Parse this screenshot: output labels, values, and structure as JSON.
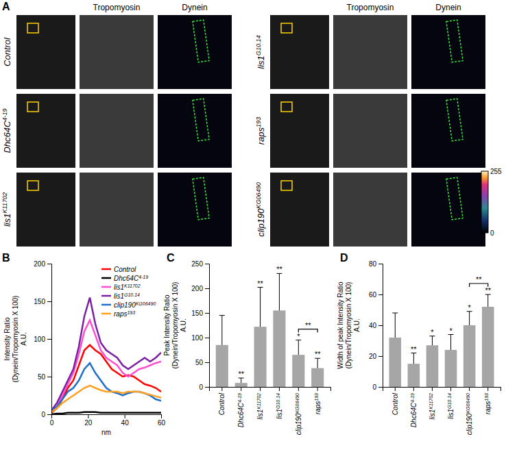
{
  "image_panel": {
    "panel_label": "A",
    "channels": [
      "Tropomyosin",
      "Dynein"
    ],
    "rows": [
      {
        "name": "Control",
        "allele": null
      },
      {
        "name": "Dhc64C",
        "allele": "4-19"
      },
      {
        "name": "lis1",
        "allele": "K11702"
      },
      {
        "name": "lis1",
        "allele": "G10.14"
      },
      {
        "name": "raps",
        "allele": "193"
      },
      {
        "name": "clip190",
        "allele": "KG06490"
      }
    ],
    "colorbar_range": [
      0,
      255
    ],
    "colorbar_ticks": [
      0,
      255
    ]
  },
  "chart_data": [
    {
      "type": "line",
      "panel_label": "B",
      "x": [
        0,
        3,
        6,
        9,
        12,
        15,
        18,
        21,
        24,
        27,
        30,
        33,
        36,
        39,
        42,
        45,
        48,
        51,
        54,
        57,
        60
      ],
      "xlim": [
        0,
        60
      ],
      "xticks": [
        0,
        20,
        40,
        60
      ],
      "x_label": "nm",
      "y_label": [
        "Intensity Ratio",
        "(Dynein/Tropomyosin X 100)",
        "A.U."
      ],
      "ylim": [
        0,
        200
      ],
      "yticks": [
        0,
        50,
        100,
        150,
        200
      ],
      "legend": "upper right",
      "series": [
        {
          "name": "Control",
          "allele": null,
          "color": "#ff0000",
          "values": [
            2,
            8,
            20,
            35,
            45,
            65,
            85,
            92,
            85,
            80,
            70,
            60,
            55,
            50,
            52,
            50,
            45,
            40,
            38,
            35,
            30
          ]
        },
        {
          "name": "Dhc64C",
          "allele": "4-19",
          "color": "#000000",
          "values": [
            0,
            1,
            1,
            2,
            2,
            2,
            3,
            3,
            3,
            2,
            2,
            2,
            2,
            2,
            2,
            2,
            2,
            2,
            2,
            2,
            2
          ]
        },
        {
          "name": "lis1",
          "allele": "K11702",
          "color": "#ff4fd0",
          "values": [
            5,
            10,
            25,
            40,
            55,
            80,
            110,
            125,
            105,
            85,
            75,
            70,
            65,
            55,
            50,
            55,
            60,
            62,
            65,
            68,
            70
          ]
        },
        {
          "name": "lis1",
          "allele": "G10.14",
          "color": "#7b1fa2",
          "values": [
            5,
            15,
            30,
            45,
            60,
            90,
            130,
            155,
            120,
            95,
            85,
            80,
            75,
            65,
            60,
            65,
            70,
            75,
            70,
            75,
            82
          ]
        },
        {
          "name": "clip190",
          "allele": "KG06490",
          "color": "#1f6fc9",
          "values": [
            5,
            10,
            20,
            30,
            35,
            45,
            60,
            68,
            55,
            45,
            35,
            30,
            28,
            25,
            28,
            30,
            30,
            28,
            25,
            20,
            18
          ]
        },
        {
          "name": "raps",
          "allele": "193",
          "color": "#ffa020",
          "values": [
            3,
            8,
            15,
            20,
            25,
            30,
            35,
            38,
            35,
            32,
            30,
            30,
            30,
            28,
            30,
            30,
            30,
            28,
            26,
            24,
            22
          ]
        }
      ]
    },
    {
      "type": "bar",
      "panel_label": "C",
      "categories": [
        "Control",
        "Dhc64C",
        "lis1",
        "lis1",
        "clip190",
        "raps"
      ],
      "category_alleles": [
        null,
        "4-19",
        "K11702",
        "G10.14",
        "KG06490",
        "193"
      ],
      "values": [
        85,
        8,
        122,
        155,
        65,
        38
      ],
      "errors": [
        60,
        10,
        80,
        75,
        30,
        20
      ],
      "significance": [
        null,
        "**",
        "**",
        "**",
        "*",
        "**"
      ],
      "comparison": {
        "from": 4,
        "to": 5,
        "text": "**"
      },
      "y_label": [
        "Peak Intensity Ratio",
        "(Dynein/Tropomyosin X 100)",
        "A.U."
      ],
      "ylim": [
        0,
        250
      ],
      "yticks": [
        0,
        50,
        100,
        150,
        200,
        250
      ],
      "color": "#a6a6a6"
    },
    {
      "type": "bar",
      "panel_label": "D",
      "categories": [
        "Control",
        "Dhc64C",
        "lis1",
        "lis1",
        "clip190",
        "raps"
      ],
      "category_alleles": [
        null,
        "4-19",
        "K11702",
        "G10.14",
        "KG06490",
        "193"
      ],
      "values": [
        32,
        15,
        27,
        24,
        40,
        52
      ],
      "errors": [
        16,
        7,
        6,
        10,
        9,
        8
      ],
      "significance": [
        null,
        "**",
        "*",
        "*",
        "*",
        "**"
      ],
      "comparison": {
        "from": 4,
        "to": 5,
        "text": "**"
      },
      "y_label": [
        "Width of peak Intensity Ratio",
        "(Dynein/Tropomyosin X 100)",
        "A.U."
      ],
      "ylim": [
        0,
        80
      ],
      "yticks": [
        0,
        20,
        40,
        60,
        80
      ],
      "color": "#a6a6a6"
    }
  ]
}
